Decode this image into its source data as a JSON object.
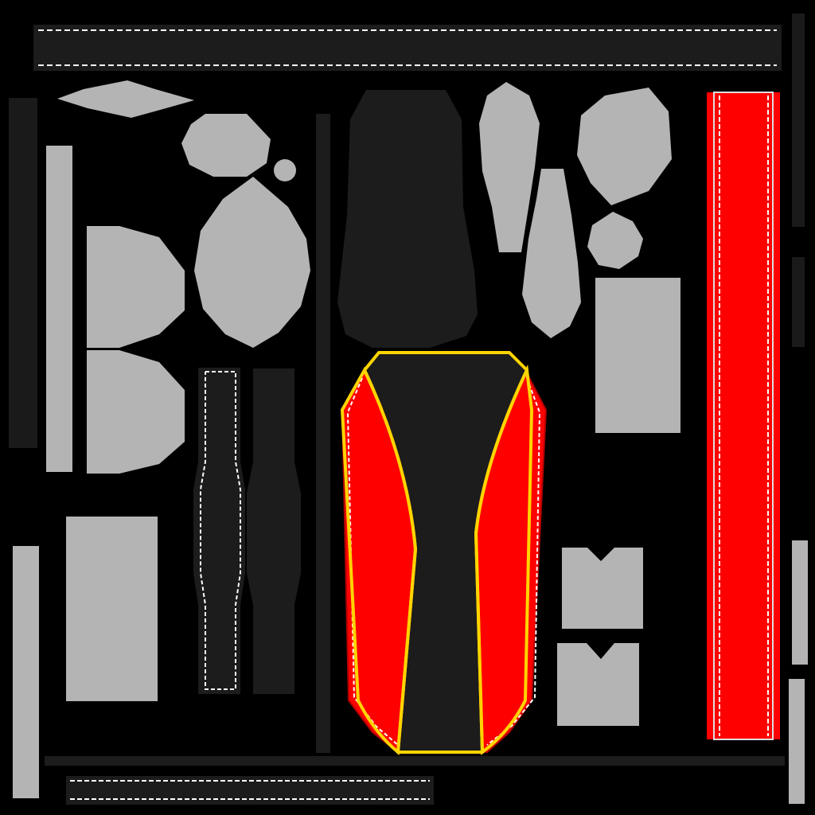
{
  "texture": {
    "colors": {
      "background": "#000000",
      "dark_panel": "#1c1c1c",
      "dark_strip": "#161616",
      "grey_panel": "#b4b4b4",
      "red_panel": "#ff0000",
      "stitching": "#ffffff",
      "piping": "#ffd400"
    }
  }
}
